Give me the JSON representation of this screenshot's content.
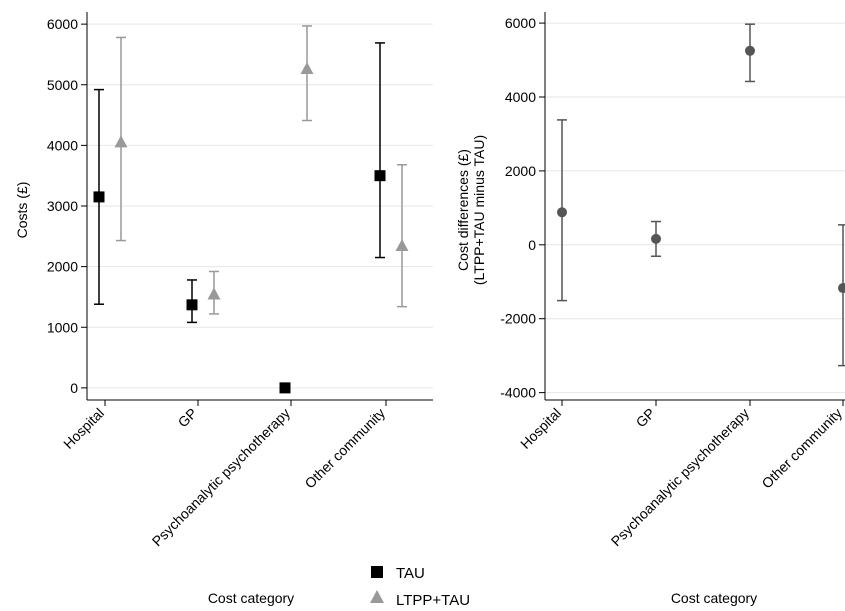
{
  "legend": {
    "items": [
      {
        "label": "TAU",
        "color": "#000000",
        "marker": "square"
      },
      {
        "label": "LTPP+TAU",
        "color": "#999999",
        "marker": "triangle"
      }
    ]
  },
  "chart_data": [
    {
      "type": "scatter",
      "title": "",
      "xlabel": "Cost category",
      "ylabel": "Costs (£)",
      "ylim": [
        -200,
        6200
      ],
      "yticks": [
        0,
        1000,
        2000,
        3000,
        4000,
        5000,
        6000
      ],
      "grid": true,
      "categories": [
        "Hospital",
        "GP",
        "Psychoanalytic psychotherapy",
        "Other community"
      ],
      "series": [
        {
          "name": "TAU",
          "color": "#000000",
          "marker": "square",
          "values": [
            3150,
            1370,
            0,
            3500
          ],
          "ci_low": [
            1380,
            1080,
            0,
            2150
          ],
          "ci_high": [
            4920,
            1780,
            0,
            5690
          ]
        },
        {
          "name": "LTPP+TAU",
          "color": "#999999",
          "marker": "triangle",
          "values": [
            4050,
            1540,
            5260,
            2340
          ],
          "ci_low": [
            2430,
            1220,
            4410,
            1340
          ],
          "ci_high": [
            5780,
            1920,
            5970,
            3680
          ]
        }
      ]
    },
    {
      "type": "scatter",
      "title": "",
      "xlabel": "Cost category",
      "ylabel": "Cost differences (£)",
      "ylabel2": "(LTPP+TAU minus TAU)",
      "ylim": [
        -4200,
        6300
      ],
      "yticks": [
        -4000,
        -2000,
        0,
        2000,
        4000,
        6000
      ],
      "grid": true,
      "categories": [
        "Hospital",
        "GP",
        "Psychoanalytic psychotherapy",
        "Other community"
      ],
      "series": [
        {
          "color": "#555555",
          "marker": "circle",
          "values": [
            880,
            160,
            5250,
            -1170
          ],
          "ci_low": [
            -1510,
            -310,
            4420,
            -3270
          ],
          "ci_high": [
            3380,
            630,
            5970,
            540
          ]
        }
      ]
    }
  ]
}
